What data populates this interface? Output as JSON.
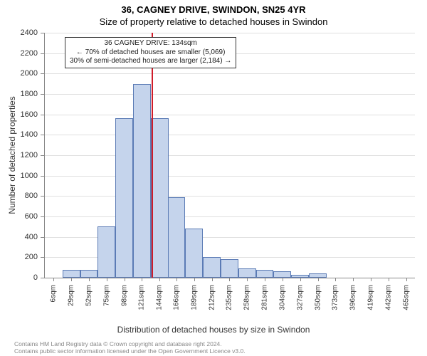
{
  "header": {
    "address": "36, CAGNEY DRIVE, SWINDON, SN25 4YR",
    "subtitle": "Size of property relative to detached houses in Swindon"
  },
  "chart": {
    "type": "histogram",
    "ylabel": "Number of detached properties",
    "xlabel": "Distribution of detached houses by size in Swindon",
    "background_color": "#ffffff",
    "plot_background": "#ffffff",
    "grid_color": "#e0e0e0",
    "bar_fill": "#c5d4ec",
    "bar_border": "#5b7bb5",
    "reference_line_color": "#d01c2a",
    "ylim": [
      0,
      2400
    ],
    "yticks": [
      0,
      200,
      400,
      600,
      800,
      1000,
      1200,
      1400,
      1600,
      1800,
      2000,
      2200,
      2400
    ],
    "x_bin_centers": [
      6,
      29,
      52,
      75,
      98,
      121,
      144,
      166,
      189,
      212,
      235,
      258,
      281,
      304,
      327,
      350,
      373,
      396,
      419,
      442,
      465
    ],
    "x_bin_width": 23,
    "x_unit": "sqm",
    "values": [
      0,
      80,
      80,
      500,
      1560,
      1900,
      1560,
      790,
      480,
      200,
      180,
      90,
      80,
      60,
      30,
      40,
      0,
      0,
      0,
      0,
      0
    ],
    "reference_value_x": 134,
    "annotation": {
      "line1": "36 CAGNEY DRIVE: 134sqm",
      "line2": "← 70% of detached houses are smaller (5,069)",
      "line3": "30% of semi-detached houses are larger (2,184) →"
    },
    "label_fontsize": 12,
    "tick_fontsize": 11,
    "annotation_fontsize": 10,
    "title_fontsize": 13
  },
  "footer": {
    "credit1": "Contains HM Land Registry data © Crown copyright and database right 2024.",
    "credit2": "Contains public sector information licensed under the Open Government Licence v3.0."
  }
}
